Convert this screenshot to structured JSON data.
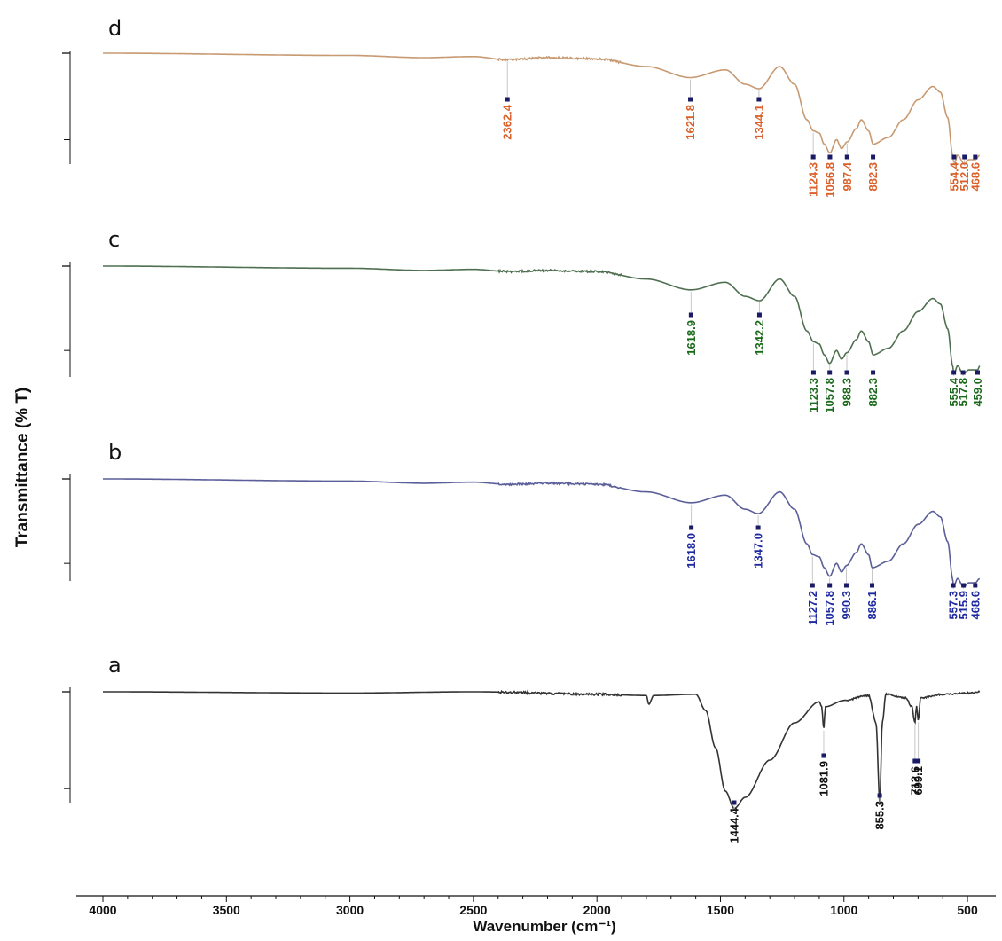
{
  "chart_data": {
    "type": "line",
    "xlabel": "Wavenumber (cm⁻¹)",
    "ylabel": "Transmittance (% T)",
    "xlim": [
      4000,
      450
    ],
    "x_reversed": true,
    "x_ticks": [
      4000,
      3500,
      3000,
      2500,
      2000,
      1500,
      1000,
      500
    ],
    "grid": false,
    "colors": {
      "a": "#333333",
      "b": "#5b5f99",
      "c": "#4f7050",
      "d": "#c79a72"
    },
    "label_colors": {
      "a": "#111111",
      "b": "#1f2aa0",
      "c": "#1b6a1b",
      "d": "#d9602a"
    },
    "series": [
      {
        "name": "d",
        "points": [
          [
            4000,
            0
          ],
          [
            3000,
            0.02
          ],
          [
            2700,
            0.04
          ],
          [
            2500,
            0.03
          ],
          [
            2362,
            0.06
          ],
          [
            2200,
            0.04
          ],
          [
            2000,
            0.05
          ],
          [
            1800,
            0.12
          ],
          [
            1622,
            0.22
          ],
          [
            1480,
            0.15
          ],
          [
            1400,
            0.28
          ],
          [
            1344,
            0.32
          ],
          [
            1260,
            0.12
          ],
          [
            1200,
            0.28
          ],
          [
            1150,
            0.6
          ],
          [
            1124,
            0.7
          ],
          [
            1100,
            0.72
          ],
          [
            1080,
            0.82
          ],
          [
            1057,
            0.9
          ],
          [
            1030,
            0.78
          ],
          [
            1010,
            0.86
          ],
          [
            987,
            0.8
          ],
          [
            950,
            0.68
          ],
          [
            930,
            0.6
          ],
          [
            900,
            0.7
          ],
          [
            882,
            0.82
          ],
          [
            820,
            0.76
          ],
          [
            760,
            0.6
          ],
          [
            700,
            0.42
          ],
          [
            640,
            0.3
          ],
          [
            610,
            0.35
          ],
          [
            580,
            0.58
          ],
          [
            560,
            0.92
          ],
          [
            554,
            1
          ],
          [
            540,
            0.92
          ],
          [
            512,
            1
          ],
          [
            495,
            0.96
          ],
          [
            469,
            0.96
          ],
          [
            450,
            0.92
          ]
        ],
        "peaks": [
          2362.4,
          1621.8,
          1344.1,
          1124.3,
          1056.8,
          987.4,
          882.3,
          554.4,
          512.0,
          468.6
        ]
      },
      {
        "name": "c",
        "points": [
          [
            4000,
            0
          ],
          [
            3000,
            0.02
          ],
          [
            2700,
            0.04
          ],
          [
            2500,
            0.03
          ],
          [
            2362,
            0.05
          ],
          [
            2200,
            0.04
          ],
          [
            2000,
            0.05
          ],
          [
            1800,
            0.12
          ],
          [
            1619,
            0.22
          ],
          [
            1480,
            0.15
          ],
          [
            1400,
            0.28
          ],
          [
            1342,
            0.32
          ],
          [
            1260,
            0.12
          ],
          [
            1200,
            0.28
          ],
          [
            1150,
            0.6
          ],
          [
            1123,
            0.7
          ],
          [
            1100,
            0.72
          ],
          [
            1080,
            0.82
          ],
          [
            1058,
            0.9
          ],
          [
            1030,
            0.78
          ],
          [
            1010,
            0.86
          ],
          [
            988,
            0.8
          ],
          [
            950,
            0.68
          ],
          [
            930,
            0.6
          ],
          [
            900,
            0.7
          ],
          [
            882,
            0.82
          ],
          [
            820,
            0.76
          ],
          [
            760,
            0.6
          ],
          [
            700,
            0.42
          ],
          [
            640,
            0.3
          ],
          [
            610,
            0.35
          ],
          [
            580,
            0.58
          ],
          [
            560,
            0.92
          ],
          [
            555,
            1
          ],
          [
            540,
            0.92
          ],
          [
            518,
            1
          ],
          [
            495,
            0.96
          ],
          [
            459,
            0.96
          ],
          [
            450,
            0.92
          ]
        ],
        "peaks": [
          1618.9,
          1342.2,
          1123.3,
          1057.8,
          988.3,
          882.3,
          555.4,
          517.8,
          459.0
        ]
      },
      {
        "name": "b",
        "points": [
          [
            4000,
            0
          ],
          [
            3000,
            0.02
          ],
          [
            2700,
            0.04
          ],
          [
            2500,
            0.03
          ],
          [
            2362,
            0.05
          ],
          [
            2200,
            0.04
          ],
          [
            2000,
            0.05
          ],
          [
            1800,
            0.12
          ],
          [
            1618,
            0.22
          ],
          [
            1480,
            0.15
          ],
          [
            1400,
            0.28
          ],
          [
            1347,
            0.32
          ],
          [
            1260,
            0.12
          ],
          [
            1200,
            0.28
          ],
          [
            1150,
            0.6
          ],
          [
            1127,
            0.7
          ],
          [
            1100,
            0.72
          ],
          [
            1080,
            0.82
          ],
          [
            1058,
            0.9
          ],
          [
            1030,
            0.78
          ],
          [
            1010,
            0.86
          ],
          [
            990,
            0.8
          ],
          [
            950,
            0.68
          ],
          [
            930,
            0.6
          ],
          [
            900,
            0.7
          ],
          [
            886,
            0.82
          ],
          [
            820,
            0.76
          ],
          [
            760,
            0.6
          ],
          [
            700,
            0.42
          ],
          [
            640,
            0.3
          ],
          [
            610,
            0.35
          ],
          [
            580,
            0.58
          ],
          [
            560,
            0.92
          ],
          [
            557,
            1
          ],
          [
            540,
            0.92
          ],
          [
            516,
            1
          ],
          [
            495,
            0.96
          ],
          [
            469,
            0.96
          ],
          [
            450,
            0.92
          ]
        ],
        "peaks": [
          1618.0,
          1347.0,
          1127.2,
          1057.8,
          990.3,
          886.1,
          557.3,
          515.9,
          468.6
        ]
      },
      {
        "name": "a",
        "points": [
          [
            4000,
            0
          ],
          [
            3000,
            0.01
          ],
          [
            2500,
            0
          ],
          [
            2000,
            0.02
          ],
          [
            1800,
            0.03
          ],
          [
            1790,
            0.1
          ],
          [
            1770,
            0.03
          ],
          [
            1600,
            0.02
          ],
          [
            1560,
            0.15
          ],
          [
            1520,
            0.45
          ],
          [
            1480,
            0.8
          ],
          [
            1444,
            0.94
          ],
          [
            1400,
            0.85
          ],
          [
            1300,
            0.55
          ],
          [
            1200,
            0.25
          ],
          [
            1100,
            0.08
          ],
          [
            1090,
            0.12
          ],
          [
            1082,
            0.3
          ],
          [
            1075,
            0.12
          ],
          [
            1000,
            0.07
          ],
          [
            900,
            0.03
          ],
          [
            870,
            0.25
          ],
          [
            855,
            0.9
          ],
          [
            845,
            0.25
          ],
          [
            830,
            0.02
          ],
          [
            750,
            0.05
          ],
          [
            725,
            0.12
          ],
          [
            713,
            0.25
          ],
          [
            706,
            0.12
          ],
          [
            699,
            0.23
          ],
          [
            690,
            0.05
          ],
          [
            600,
            0.02
          ],
          [
            500,
            0.01
          ],
          [
            450,
            0
          ]
        ],
        "peaks": [
          1444.4,
          1081.9,
          855.3,
          712.6,
          699.1
        ]
      }
    ],
    "peak_labels": {
      "d": [
        "2362.4",
        "1621.8",
        "1344.1",
        "1124.3",
        "1056.8",
        "987.4",
        "882.3",
        "554.4",
        "512.0",
        "468.6"
      ],
      "c": [
        "1618.9",
        "1342.2",
        "1123.3",
        "1057.8",
        "988.3",
        "882.3",
        "555.4",
        "517.8",
        "459.0"
      ],
      "b": [
        "1618.0",
        "1347.0",
        "1127.2",
        "1057.8",
        "990.3",
        "886.1",
        "557.3",
        "515.9",
        "468.6"
      ],
      "a": [
        "1444.4",
        "1081.9",
        "855.3",
        "712.6",
        "699.1"
      ]
    }
  }
}
